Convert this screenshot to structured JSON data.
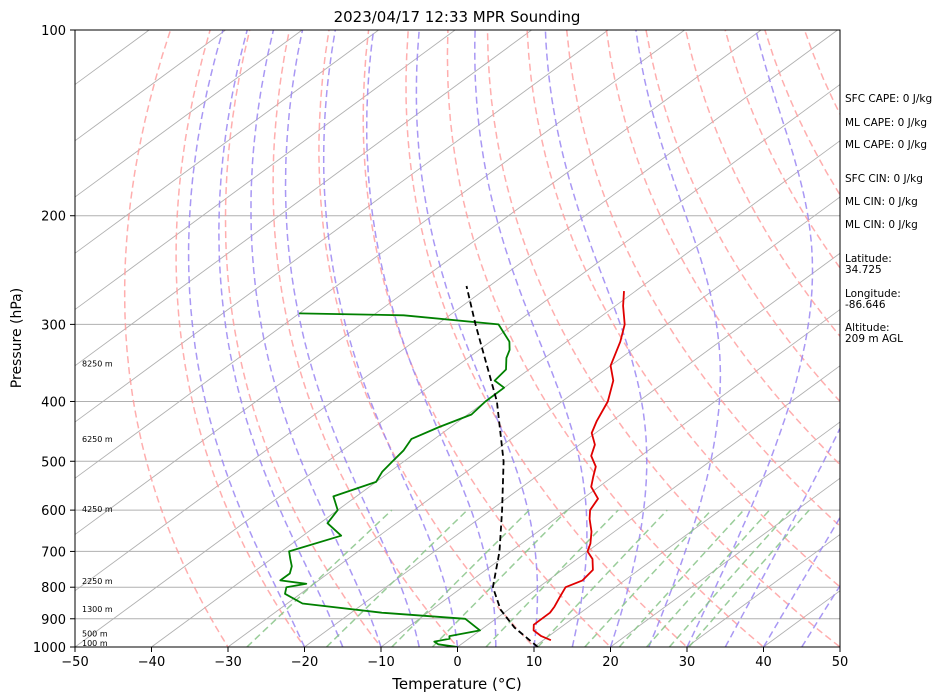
{
  "chart_data": {
    "type": "line",
    "title": "2023/04/17 12:33 MPR Sounding",
    "xlabel": "Temperature (°C)",
    "ylabel": "Pressure (hPa)",
    "xlim": [
      -50,
      50
    ],
    "ylim": [
      1000,
      100
    ],
    "y_scale": "log",
    "skew": true,
    "grid": true,
    "x_ticks": [
      "−50",
      "−40",
      "−30",
      "−20",
      "−10",
      "0",
      "10",
      "20",
      "30",
      "40",
      "50"
    ],
    "y_ticks": [
      "100",
      "200",
      "300",
      "400",
      "500",
      "600",
      "700",
      "800",
      "900",
      "1000"
    ],
    "series": [
      {
        "role": "temperature",
        "color": "#e00000",
        "points": [
          [
            975,
            11.0
          ],
          [
            960,
            9.0
          ],
          [
            940,
            7.0
          ],
          [
            920,
            6.0
          ],
          [
            880,
            6.0
          ],
          [
            860,
            5.5
          ],
          [
            830,
            4.5
          ],
          [
            800,
            3.5
          ],
          [
            780,
            4.5
          ],
          [
            750,
            4.0
          ],
          [
            720,
            2.0
          ],
          [
            700,
            0.0
          ],
          [
            680,
            -1.0
          ],
          [
            650,
            -3.0
          ],
          [
            620,
            -5.5
          ],
          [
            600,
            -7.0
          ],
          [
            575,
            -8.0
          ],
          [
            550,
            -11.0
          ],
          [
            530,
            -12.5
          ],
          [
            510,
            -14.0
          ],
          [
            490,
            -16.5
          ],
          [
            470,
            -18.0
          ],
          [
            450,
            -20.5
          ],
          [
            430,
            -22.0
          ],
          [
            400,
            -24.0
          ],
          [
            370,
            -27.0
          ],
          [
            350,
            -30.0
          ],
          [
            320,
            -33.0
          ],
          [
            300,
            -35.5
          ],
          [
            280,
            -39.0
          ],
          [
            265,
            -41.5
          ]
        ]
      },
      {
        "role": "dewpoint",
        "color": "#008000",
        "points": [
          [
            1000,
            0.0
          ],
          [
            990,
            -3.0
          ],
          [
            980,
            -4.0
          ],
          [
            970,
            -2.5
          ],
          [
            960,
            -3.0
          ],
          [
            940,
            0.0
          ],
          [
            900,
            -4.0
          ],
          [
            880,
            -16.0
          ],
          [
            850,
            -28.0
          ],
          [
            820,
            -32.0
          ],
          [
            800,
            -33.0
          ],
          [
            790,
            -31.0
          ],
          [
            780,
            -35.0
          ],
          [
            760,
            -35.0
          ],
          [
            740,
            -36.0
          ],
          [
            720,
            -37.5
          ],
          [
            700,
            -39.0
          ],
          [
            660,
            -35.0
          ],
          [
            630,
            -39.0
          ],
          [
            600,
            -40.0
          ],
          [
            570,
            -43.0
          ],
          [
            540,
            -40.0
          ],
          [
            520,
            -41.0
          ],
          [
            500,
            -41.5
          ],
          [
            480,
            -42.0
          ],
          [
            460,
            -43.0
          ],
          [
            440,
            -41.5
          ],
          [
            420,
            -39.5
          ],
          [
            400,
            -40.0
          ],
          [
            380,
            -40.0
          ],
          [
            370,
            -42.5
          ],
          [
            355,
            -43.0
          ],
          [
            340,
            -45.0
          ],
          [
            330,
            -46.0
          ],
          [
            320,
            -47.5
          ],
          [
            300,
            -52.0
          ],
          [
            290,
            -66.0
          ],
          [
            288,
            -80.0
          ]
        ]
      },
      {
        "role": "parcel",
        "color": "#000000",
        "points": [
          [
            1000,
            10.5
          ],
          [
            930,
            4.0
          ],
          [
            870,
            -1.0
          ],
          [
            800,
            -6.0
          ],
          [
            700,
            -11.5
          ],
          [
            600,
            -18.5
          ],
          [
            500,
            -27.0
          ],
          [
            400,
            -38.5
          ],
          [
            300,
            -55.0
          ],
          [
            260,
            -63.0
          ]
        ]
      }
    ],
    "height_labels": [
      {
        "text": "100 m",
        "p": 985
      },
      {
        "text": "500 m",
        "p": 950
      },
      {
        "text": "1300 m",
        "p": 868
      },
      {
        "text": "2250 m",
        "p": 781
      },
      {
        "text": "4250 m",
        "p": 598
      },
      {
        "text": "6250 m",
        "p": 460
      },
      {
        "text": "8250 m",
        "p": 347
      }
    ],
    "annotations": {
      "cape_cin": [
        "SFC CAPE: 0 J/kg",
        "ML CAPE: 0 J/kg",
        "ML CAPE: 0 J/kg",
        "SFC CIN: 0 J/kg",
        "ML CIN: 0 J/kg",
        "ML CIN: 0 J/kg"
      ],
      "location": [
        [
          "Latitude:",
          "34.725"
        ],
        [
          "Longitude:",
          "-86.646"
        ],
        [
          "Altitude:",
          "209 m AGL"
        ]
      ]
    },
    "colors": {
      "isotherm": "#b0b0b0",
      "dry_adiabat": "#ff9a9a",
      "moist_adiabat": "#9a86f2",
      "mixing_ratio": "#88c488",
      "temperature": "#e00000",
      "dewpoint": "#008000",
      "parcel": "#000000"
    }
  }
}
